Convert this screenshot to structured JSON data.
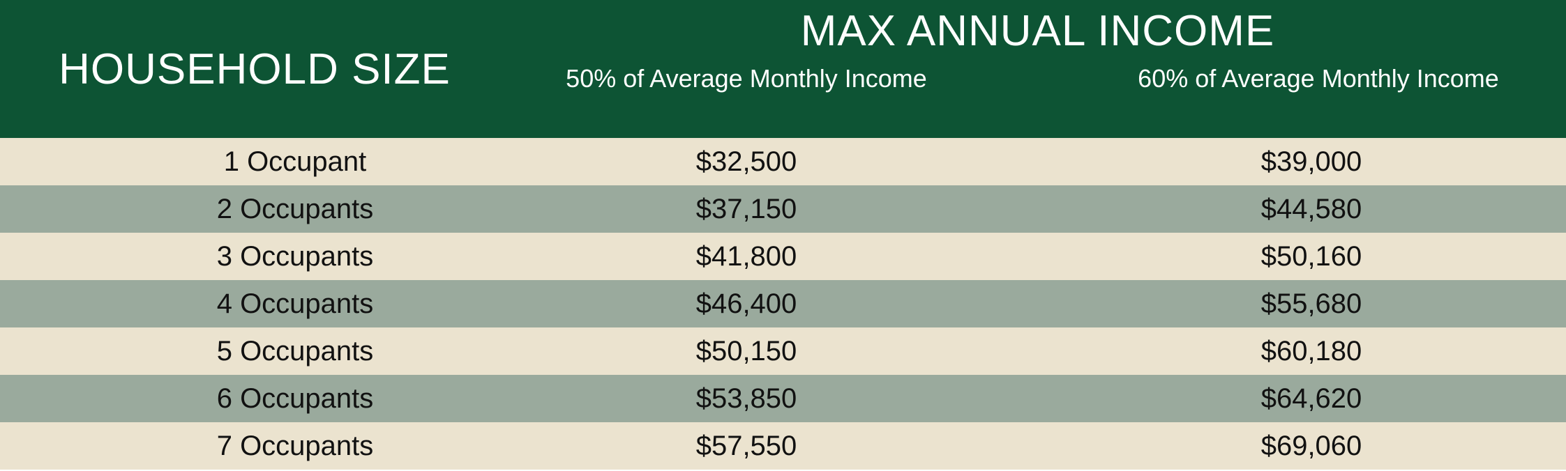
{
  "header": {
    "household_size_label": "HOUSEHOLD SIZE",
    "max_income_label": "MAX ANNUAL INCOME",
    "col_50_label": "50% of Average Monthly Income",
    "col_60_label": "60% of Average Monthly Income"
  },
  "rows": [
    {
      "size": "1 Occupant",
      "pct50": "$32,500",
      "pct60": "$39,000"
    },
    {
      "size": "2 Occupants",
      "pct50": "$37,150",
      "pct60": "$44,580"
    },
    {
      "size": "3 Occupants",
      "pct50": "$41,800",
      "pct60": "$50,160"
    },
    {
      "size": "4 Occupants",
      "pct50": "$46,400",
      "pct60": "$55,680"
    },
    {
      "size": "5 Occupants",
      "pct50": "$50,150",
      "pct60": "$60,180"
    },
    {
      "size": "6 Occupants",
      "pct50": "$53,850",
      "pct60": "$64,620"
    },
    {
      "size": "7 Occupants",
      "pct50": "$57,550",
      "pct60": "$69,060"
    }
  ],
  "colors": {
    "header_bg": "#0d5434",
    "row_light": "#ebe3cf",
    "row_dark": "#9aaa9d",
    "text": "#111111"
  }
}
